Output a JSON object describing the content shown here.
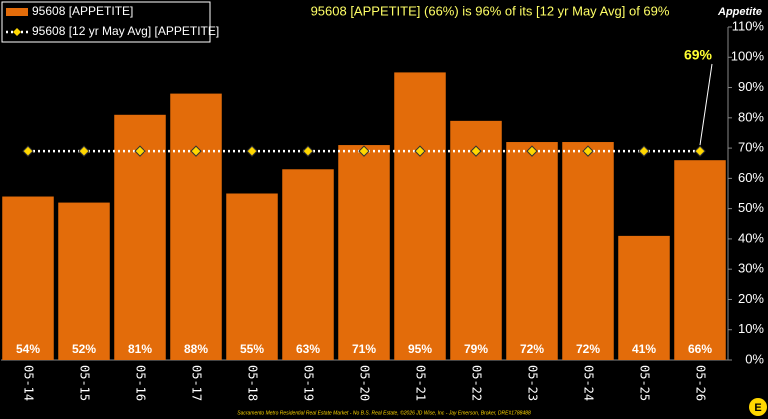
{
  "chart_data": {
    "type": "bar",
    "title": "95608 [APPETITE] (66%) is 96% of its [12 yr May Avg] of 69%",
    "y_axis_label": "Appetite",
    "footer": "Sacramento Metro Residential Real Estate Market - No B.S. Real Estate, ©2026 JD Wise, Inc - Jay Emerson, Broker, DRE#1788488",
    "categories": [
      "05-14",
      "05-15",
      "05-16",
      "05-17",
      "05-18",
      "05-19",
      "05-20",
      "05-21",
      "05-22",
      "05-23",
      "05-24",
      "05-25",
      "05-26"
    ],
    "series": [
      {
        "name": "95608 [APPETITE]",
        "type": "bar",
        "color": "#e36c0a",
        "values": [
          54,
          52,
          81,
          88,
          55,
          63,
          71,
          95,
          79,
          72,
          72,
          41,
          66
        ],
        "value_labels": [
          "54%",
          "52%",
          "81%",
          "88%",
          "55%",
          "63%",
          "71%",
          "95%",
          "79%",
          "72%",
          "72%",
          "41%",
          "66%"
        ]
      },
      {
        "name": "95608 [12 yr May Avg] [APPETITE]",
        "type": "line",
        "color": "#ffffff",
        "marker_color": "#ffd700",
        "values": [
          69,
          69,
          69,
          69,
          69,
          69,
          69,
          69,
          69,
          69,
          69,
          69,
          69
        ],
        "end_label": "69%"
      }
    ],
    "ylim": [
      0,
      110
    ],
    "yticks": [
      {
        "value": 0,
        "label": "0%"
      },
      {
        "value": 10,
        "label": "10%"
      },
      {
        "value": 20,
        "label": "20%"
      },
      {
        "value": 30,
        "label": "30%"
      },
      {
        "value": 40,
        "label": "40%"
      },
      {
        "value": 50,
        "label": "50%"
      },
      {
        "value": 60,
        "label": "60%"
      },
      {
        "value": 70,
        "label": "70%"
      },
      {
        "value": 80,
        "label": "80%"
      },
      {
        "value": 90,
        "label": "90%"
      },
      {
        "value": 100,
        "label": "100%"
      },
      {
        "value": 110,
        "label": "110%"
      }
    ],
    "grid": false
  }
}
